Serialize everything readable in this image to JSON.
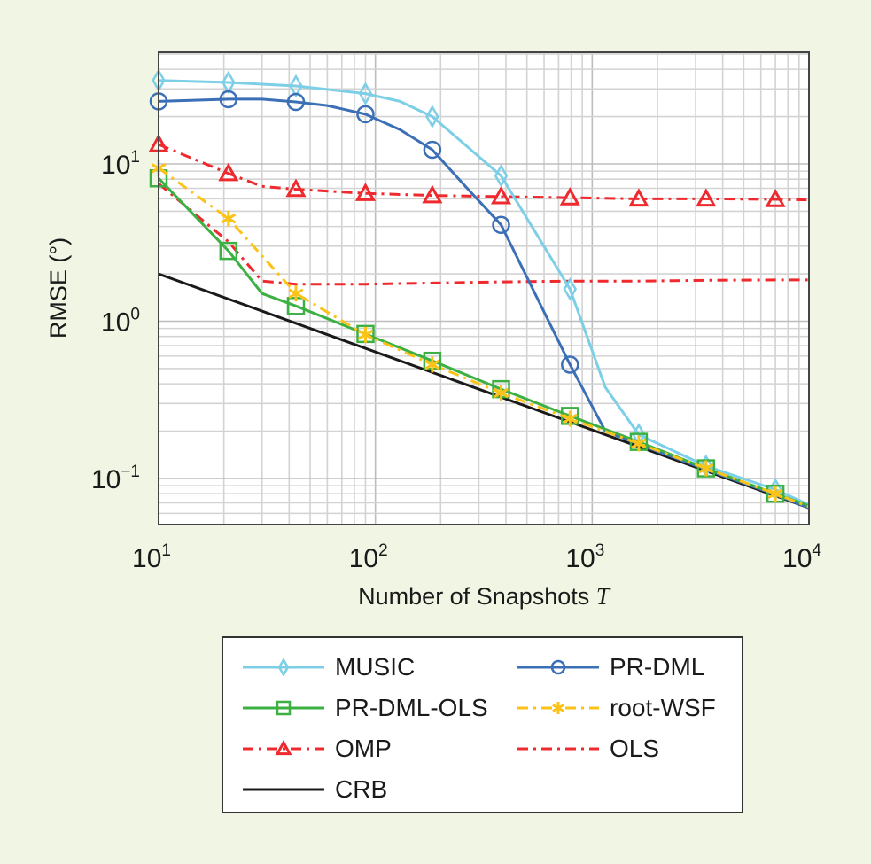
{
  "chart_data": {
    "type": "line",
    "title": "",
    "xlabel": "Number of Snapshots",
    "xlabel_var": "T",
    "ylabel": "RMSE (°)",
    "xscale": "log",
    "yscale": "log",
    "xlim": [
      10,
      10000
    ],
    "ylim": [
      0.05,
      50
    ],
    "grid": true,
    "legend_position": "below",
    "x_ticks": [
      {
        "base": "10",
        "exp": "1"
      },
      {
        "base": "10",
        "exp": "2"
      },
      {
        "base": "10",
        "exp": "3"
      },
      {
        "base": "10",
        "exp": "4"
      }
    ],
    "y_ticks": [
      {
        "base": "10",
        "exp": "1"
      },
      {
        "base": "10",
        "exp": "0"
      },
      {
        "base": "10",
        "exp": "−1"
      }
    ],
    "series": [
      {
        "name": "MUSIC",
        "color": "#7ccfe6",
        "dash": "solid",
        "marker": "diamond",
        "x": [
          10,
          21,
          43,
          90,
          130,
          183,
          260,
          380,
          790,
          1150,
          1640,
          3350,
          7000,
          10000
        ],
        "y": [
          34,
          33,
          31.3,
          28,
          25,
          20,
          13.2,
          8.4,
          1.6,
          0.38,
          0.19,
          0.12,
          0.085,
          0.068
        ],
        "marker_x": [
          10,
          21,
          43,
          90,
          183,
          380,
          790,
          1640,
          3350,
          7000
        ]
      },
      {
        "name": "PR-DML",
        "color": "#3b6fb6",
        "dash": "solid",
        "marker": "circle",
        "x": [
          10,
          21,
          30,
          43,
          60,
          90,
          130,
          183,
          260,
          380,
          790,
          1150,
          1640,
          3350,
          7000,
          10000
        ],
        "y": [
          25,
          25.8,
          25.8,
          24.8,
          23.5,
          20.7,
          16.5,
          12.3,
          7.2,
          4.1,
          0.53,
          0.2,
          0.165,
          0.114,
          0.079,
          0.065
        ],
        "marker_x": [
          10,
          21,
          43,
          90,
          183,
          380,
          790
        ]
      },
      {
        "name": "PR-DML-OLS",
        "color": "#3cb043",
        "dash": "solid",
        "marker": "square",
        "x": [
          10,
          21,
          30,
          43,
          90,
          183,
          380,
          790,
          1640,
          3350,
          7000,
          10000
        ],
        "y": [
          8.1,
          2.8,
          1.5,
          1.25,
          0.83,
          0.56,
          0.37,
          0.25,
          0.171,
          0.116,
          0.08,
          0.067
        ],
        "marker_x": [
          10,
          21,
          43,
          90,
          183,
          380,
          790,
          1640,
          3350,
          7000
        ]
      },
      {
        "name": "root-WSF",
        "color": "#fbc318",
        "dash": "dashdotdot",
        "marker": "asterisk",
        "x": [
          10,
          21,
          43,
          90,
          183,
          380,
          790,
          1640,
          3350,
          7000,
          10000
        ],
        "y": [
          9.4,
          4.5,
          1.5,
          0.82,
          0.53,
          0.35,
          0.24,
          0.167,
          0.116,
          0.08,
          0.066
        ],
        "marker_x": [
          10,
          21,
          43,
          90,
          183,
          380,
          790,
          1640,
          3350,
          7000
        ]
      },
      {
        "name": "OMP",
        "color": "#ee2a2e",
        "dash": "dashdotdot",
        "marker": "triangle",
        "x": [
          10,
          21,
          30,
          43,
          90,
          183,
          380,
          790,
          1640,
          3350,
          7000,
          10000
        ],
        "y": [
          13.3,
          8.7,
          7.2,
          6.9,
          6.5,
          6.3,
          6.2,
          6.1,
          6.0,
          6.0,
          5.95,
          5.9
        ],
        "marker_x": [
          10,
          21,
          43,
          90,
          183,
          380,
          790,
          1640,
          3350,
          7000
        ]
      },
      {
        "name": "OLS",
        "color": "#ee2a2e",
        "dash": "dashdotdot",
        "marker": "none",
        "x": [
          10,
          21,
          30,
          43,
          90,
          183,
          380,
          790,
          1640,
          3350,
          7000,
          10000
        ],
        "y": [
          7.5,
          3.2,
          1.8,
          1.72,
          1.72,
          1.75,
          1.78,
          1.8,
          1.8,
          1.82,
          1.83,
          1.83
        ],
        "marker_x": []
      },
      {
        "name": "CRB",
        "color": "#1a1a1a",
        "dash": "solid",
        "marker": "none",
        "x": [
          10,
          10000
        ],
        "y": [
          2.0,
          0.065
        ],
        "marker_x": []
      }
    ]
  },
  "legend": {
    "items": [
      {
        "label": "MUSIC"
      },
      {
        "label": "PR-DML"
      },
      {
        "label": "PR-DML-OLS"
      },
      {
        "label": "root-WSF"
      },
      {
        "label": "OMP"
      },
      {
        "label": "OLS"
      },
      {
        "label": "CRB"
      }
    ]
  }
}
